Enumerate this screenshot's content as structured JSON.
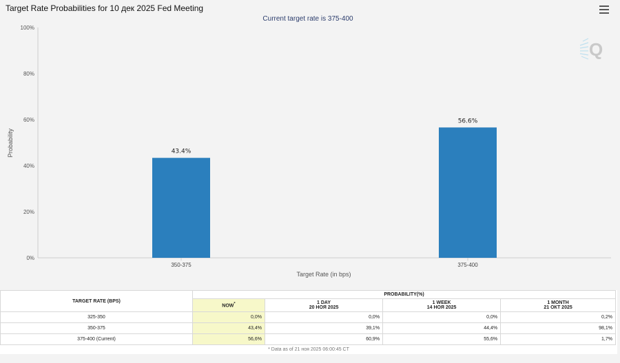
{
  "header": {
    "title": "Target Rate Probabilities for 10 дек 2025 Fed Meeting",
    "subtitle": "Current target rate is 375-400"
  },
  "chart_data": {
    "type": "bar",
    "categories": [
      "350-375",
      "375-400"
    ],
    "values": [
      43.4,
      56.6
    ],
    "data_labels": [
      "43.4%",
      "56.6%"
    ],
    "xlabel": "Target Rate (in bps)",
    "ylabel": "Probability",
    "ylim": [
      0,
      100
    ],
    "yticks": [
      "0%",
      "20%",
      "40%",
      "60%",
      "80%",
      "100%"
    ],
    "bar_color": "#2b7fbd",
    "grid": false
  },
  "table": {
    "header_target": "TARGET RATE (BPS)",
    "header_probability": "PROBABILITY(%)",
    "columns": [
      {
        "label": "NOW",
        "sup": "*",
        "date": ""
      },
      {
        "label": "1 DAY",
        "date": "20 НОЯ 2025"
      },
      {
        "label": "1 WEEK",
        "date": "14 НОЯ 2025"
      },
      {
        "label": "1 MONTH",
        "date": "21 ОКТ 2025"
      }
    ],
    "rows": [
      {
        "rate": "325-350",
        "values": [
          "0,0%",
          "0,0%",
          "0,0%",
          "0,2%"
        ]
      },
      {
        "rate": "350-375",
        "values": [
          "43,4%",
          "39,1%",
          "44,4%",
          "98,1%"
        ]
      },
      {
        "rate": "375-400 (Current)",
        "values": [
          "56,6%",
          "60,9%",
          "55,6%",
          "1,7%"
        ]
      }
    ],
    "footnote": "* Data as of 21 ноя 2025 06:00:45 CT"
  },
  "icons": {
    "menu": "hamburger-menu-icon",
    "logo": "q-logo-icon"
  }
}
